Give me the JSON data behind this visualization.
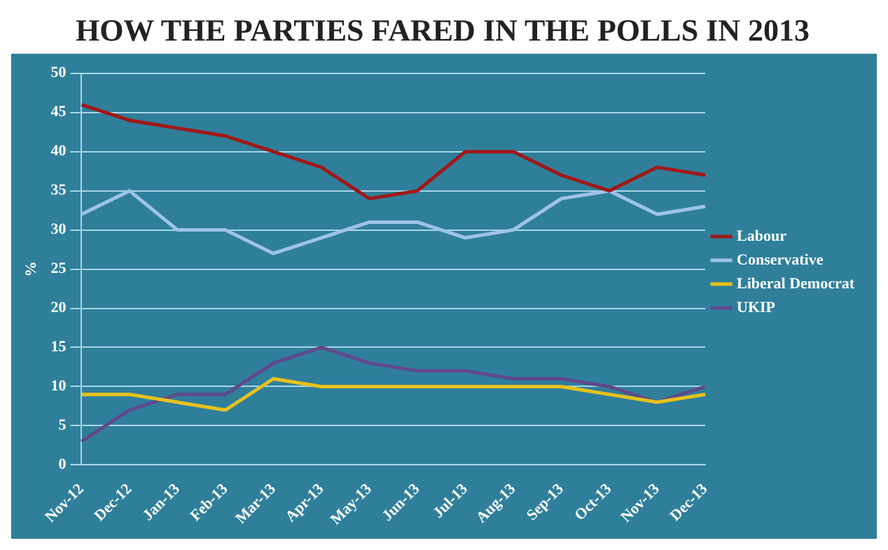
{
  "chart_data": {
    "type": "line",
    "title": "HOW THE PARTIES FARED IN THE POLLS IN 2013",
    "ylabel": "%",
    "categories": [
      "Nov-12",
      "Dec-12",
      "Jan-13",
      "Feb-13",
      "Mar-13",
      "Apr-13",
      "May-13",
      "Jun-13",
      "Jul-13",
      "Aug-13",
      "Sep-13",
      "Oct-13",
      "Nov-13",
      "Dec-13"
    ],
    "series": [
      {
        "name": "Labour",
        "color": "#a01818",
        "values": [
          46,
          44,
          43,
          42,
          40,
          38,
          34,
          35,
          40,
          40,
          37,
          35,
          38,
          37
        ]
      },
      {
        "name": "Conservative",
        "color": "#9ec3e6",
        "values": [
          32,
          35,
          30,
          30,
          27,
          29,
          31,
          31,
          29,
          30,
          34,
          35,
          32,
          33
        ]
      },
      {
        "name": "Liberal Democrat",
        "color": "#e8c21a",
        "values": [
          9,
          9,
          8,
          7,
          11,
          10,
          10,
          10,
          10,
          10,
          10,
          9,
          8,
          9
        ]
      },
      {
        "name": "UKIP",
        "color": "#5e4a8a",
        "values": [
          3,
          7,
          9,
          9,
          13,
          15,
          13,
          12,
          12,
          11,
          11,
          10,
          8,
          10
        ]
      }
    ],
    "ylim": [
      0,
      50
    ],
    "yticks": [
      0,
      5,
      10,
      15,
      20,
      25,
      30,
      35,
      40,
      45,
      50
    ],
    "grid": "y",
    "legend": "right",
    "marker": "none",
    "line_style": "solid"
  }
}
